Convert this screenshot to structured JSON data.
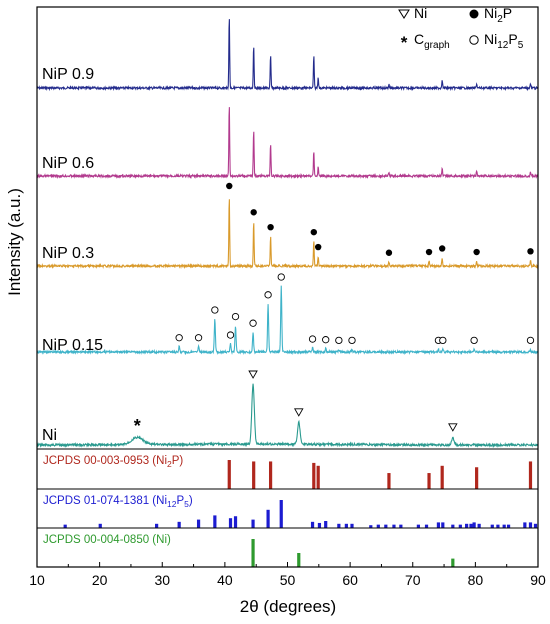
{
  "chart_data": {
    "type": "line",
    "xlabel": "2θ (degrees)",
    "ylabel": "Intensity (a.u.)",
    "xlim": [
      10,
      90
    ],
    "xticks": [
      10,
      20,
      30,
      40,
      50,
      60,
      70,
      80,
      90
    ],
    "legend": {
      "placement": "top-right",
      "items": [
        {
          "symbol": "triangle-down-open",
          "label": "Ni",
          "sub": ""
        },
        {
          "symbol": "circle-filled",
          "label": "Ni",
          "sub": "2",
          "tail": "P",
          "sub2": ""
        },
        {
          "symbol": "asterisk",
          "label": "C",
          "sub": "graph",
          "tail": "",
          "sub2": ""
        },
        {
          "symbol": "circle-open",
          "label": "Ni",
          "sub": "12",
          "tail": "P",
          "sub2": "5"
        }
      ]
    },
    "series": [
      {
        "name": "NiP 0.9",
        "color": "#232b8c",
        "peaks": [
          [
            40.7,
            1.0
          ],
          [
            44.6,
            0.6
          ],
          [
            47.3,
            0.45
          ],
          [
            54.2,
            0.45
          ],
          [
            54.9,
            0.15
          ],
          [
            66.2,
            0.05
          ],
          [
            74.7,
            0.12
          ],
          [
            80.2,
            0.06
          ],
          [
            88.8,
            0.06
          ]
        ]
      },
      {
        "name": "NiP 0.6",
        "color": "#b23a8e",
        "peaks": [
          [
            40.7,
            1.0
          ],
          [
            44.6,
            0.65
          ],
          [
            47.3,
            0.45
          ],
          [
            54.2,
            0.35
          ],
          [
            54.9,
            0.12
          ],
          [
            66.2,
            0.05
          ],
          [
            74.7,
            0.1
          ],
          [
            80.2,
            0.06
          ],
          [
            88.8,
            0.06
          ]
        ]
      },
      {
        "name": "NiP 0.3",
        "color": "#d99a2b",
        "peaks": [
          [
            40.7,
            1.0
          ],
          [
            44.6,
            0.63
          ],
          [
            47.3,
            0.42
          ],
          [
            54.2,
            0.35
          ],
          [
            54.9,
            0.14
          ],
          [
            66.2,
            0.06
          ],
          [
            72.6,
            0.07
          ],
          [
            74.7,
            0.12
          ],
          [
            80.2,
            0.07
          ],
          [
            88.8,
            0.08
          ]
        ]
      },
      {
        "name": "NiP 0.15",
        "color": "#3fb3c9",
        "peaks": [
          [
            32.7,
            0.08
          ],
          [
            35.8,
            0.08
          ],
          [
            38.4,
            0.5
          ],
          [
            40.9,
            0.12
          ],
          [
            41.7,
            0.4
          ],
          [
            44.5,
            0.3
          ],
          [
            46.9,
            0.73
          ],
          [
            49.0,
            1.0
          ],
          [
            54.0,
            0.06
          ],
          [
            56.1,
            0.05
          ],
          [
            58.2,
            0.04
          ],
          [
            60.3,
            0.04
          ],
          [
            74.1,
            0.04
          ],
          [
            74.8,
            0.04
          ],
          [
            79.8,
            0.04
          ],
          [
            88.8,
            0.04
          ]
        ]
      },
      {
        "name": "Ni",
        "color": "#2a9a8f",
        "peaks": [
          [
            26.0,
            0.12
          ],
          [
            44.5,
            1.0
          ],
          [
            51.8,
            0.37
          ],
          [
            76.4,
            0.12
          ]
        ]
      }
    ],
    "markers": {
      "NiP 0.3": {
        "symbol": "circle-filled",
        "x": [
          40.7,
          44.6,
          47.3,
          54.2,
          54.9,
          66.2,
          72.6,
          74.7,
          80.2,
          88.8
        ]
      },
      "NiP 0.15": {
        "symbol": "circle-open",
        "x": [
          32.7,
          35.8,
          38.4,
          40.9,
          41.7,
          44.5,
          46.9,
          49.0,
          54.0,
          56.1,
          58.2,
          60.3,
          74.1,
          74.8,
          79.8,
          88.8
        ]
      },
      "Ni_asterisk": {
        "symbol": "asterisk",
        "x": [
          26.0
        ]
      },
      "Ni_triangles": {
        "symbol": "triangle-down-open",
        "x": [
          44.5,
          51.8,
          76.4
        ]
      }
    },
    "reference_panels": [
      {
        "label": "JCPDS 00-003-0953 (Ni",
        "sub": "2",
        "tail": "P)",
        "sub2": "",
        "tail2": "",
        "color": "#b0271d",
        "x": [
          40.7,
          44.6,
          47.3,
          54.2,
          54.9,
          66.2,
          72.6,
          74.7,
          80.2,
          88.8
        ],
        "h": [
          1.0,
          0.95,
          0.95,
          0.9,
          0.8,
          0.55,
          0.55,
          0.8,
          0.75,
          0.95
        ]
      },
      {
        "label": "JCPDS 01-074-1381 (Ni",
        "sub": "12",
        "tail": "P",
        "sub2": "5",
        "tail2": ")",
        "color": "#1c1cd1",
        "x": [
          14.5,
          20.1,
          29.1,
          32.7,
          35.8,
          38.4,
          40.9,
          41.7,
          44.5,
          46.9,
          49.0,
          54.0,
          55.1,
          56.1,
          58.2,
          59.4,
          60.3,
          63.3,
          64.5,
          65.7,
          67.0,
          68.1,
          70.9,
          72.2,
          74.1,
          74.8,
          76.4,
          77.6,
          78.6,
          79.3,
          79.8,
          80.6,
          82.7,
          83.6,
          84.6,
          85.3,
          87.9,
          88.8,
          89.6
        ],
        "h": [
          0.12,
          0.15,
          0.15,
          0.22,
          0.3,
          0.45,
          0.35,
          0.42,
          0.3,
          0.65,
          1.0,
          0.22,
          0.18,
          0.25,
          0.15,
          0.15,
          0.15,
          0.1,
          0.12,
          0.12,
          0.12,
          0.12,
          0.12,
          0.12,
          0.2,
          0.2,
          0.12,
          0.12,
          0.15,
          0.15,
          0.2,
          0.15,
          0.12,
          0.12,
          0.12,
          0.12,
          0.2,
          0.2,
          0.15
        ]
      },
      {
        "label": "JCPDS 00-004-0850 (Ni)",
        "sub": "",
        "tail": "",
        "sub2": "",
        "tail2": "",
        "color": "#2e9a2e",
        "x": [
          44.5,
          51.8,
          76.4
        ],
        "h": [
          1.0,
          0.5,
          0.3
        ]
      }
    ]
  }
}
